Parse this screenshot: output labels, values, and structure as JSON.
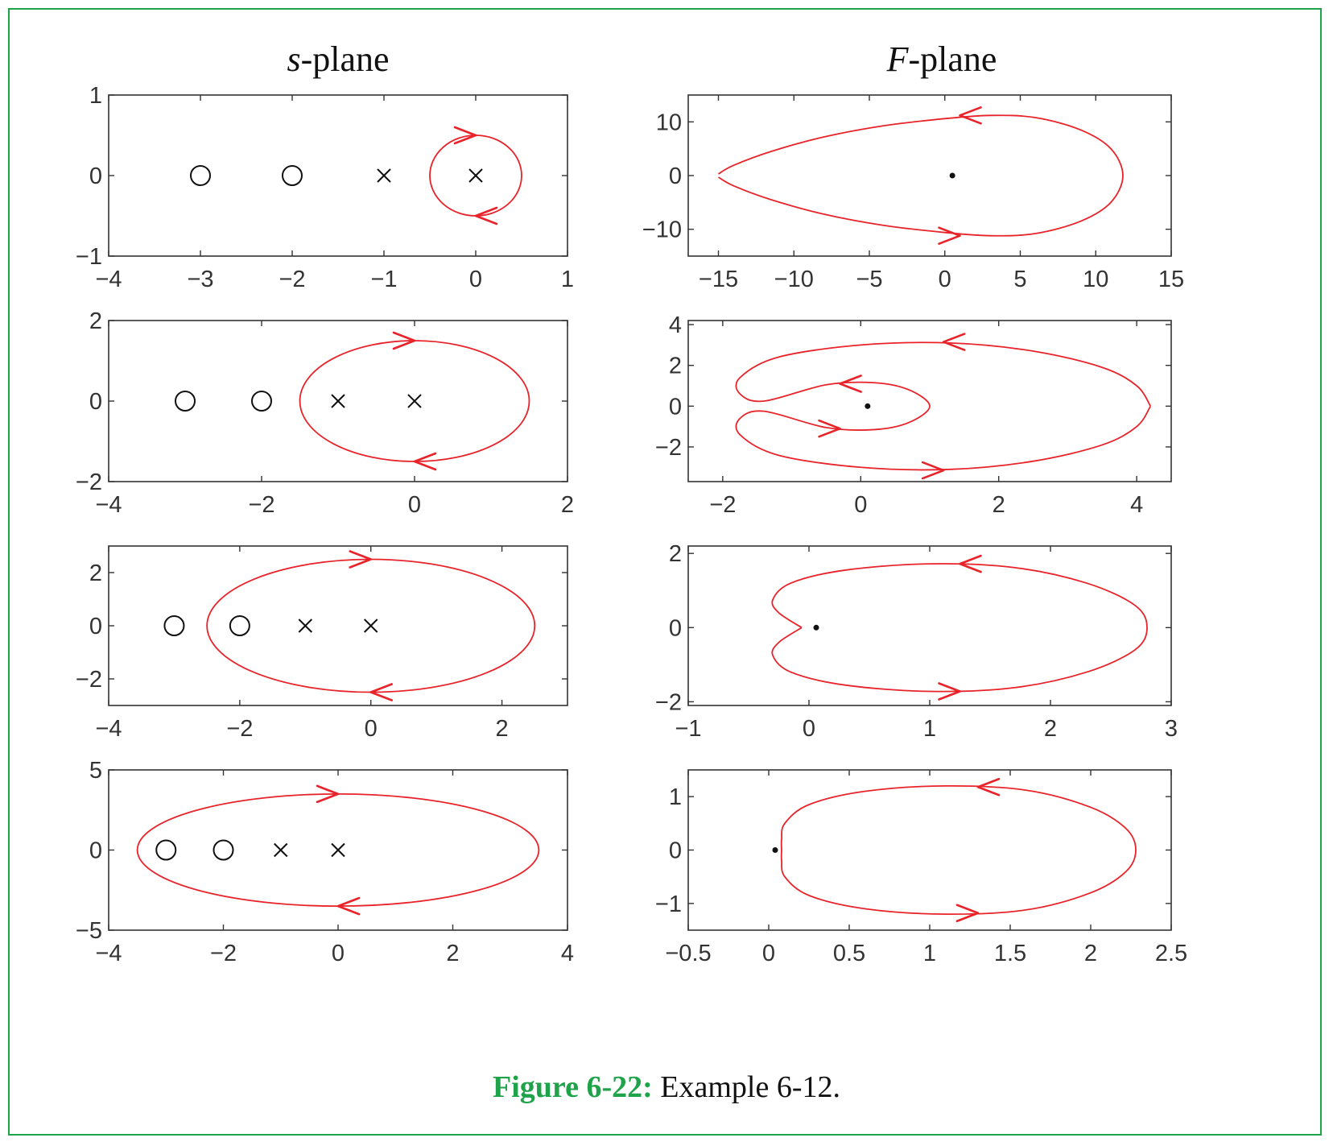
{
  "caption": {
    "label": "Figure 6-22:",
    "text": " Example 6-12."
  },
  "colors": {
    "contour": "#e8232a",
    "frame": "#1fa34a",
    "caption_label": "#1fa34a",
    "marks": "#111111"
  },
  "chart_data": [
    {
      "id": "s1",
      "column": "s-plane",
      "title_var": "s",
      "title_rest": "-plane",
      "type": "scatter",
      "xlim": [
        -4,
        1
      ],
      "ylim": [
        -1,
        1
      ],
      "xticks": [
        -4,
        -3,
        -2,
        -1,
        0,
        1
      ],
      "xtick_labels": [
        "−4",
        "−3",
        "−2",
        "−1",
        "0",
        "1"
      ],
      "yticks": [
        -1,
        0,
        1
      ],
      "ytick_labels": [
        "−1",
        "0",
        "1"
      ],
      "zeros": [
        [
          -3,
          0
        ],
        [
          -2,
          0
        ]
      ],
      "poles": [
        [
          -1,
          0
        ],
        [
          0,
          0
        ]
      ],
      "contour": {
        "shape": "circle",
        "center": [
          0,
          0
        ],
        "radius": 0.5,
        "direction": "clockwise"
      },
      "arrows": [
        {
          "at": [
            0,
            0.5
          ],
          "dir": "right"
        },
        {
          "at": [
            0,
            -0.5
          ],
          "dir": "left"
        }
      ]
    },
    {
      "id": "F1",
      "column": "F-plane",
      "title_var": "F",
      "title_rest": "-plane",
      "type": "line",
      "xlim": [
        -17,
        15
      ],
      "ylim": [
        -15,
        15
      ],
      "xticks": [
        -15,
        -10,
        -5,
        0,
        5,
        10,
        15
      ],
      "xtick_labels": [
        "−15",
        "−10",
        "−5",
        "0",
        "5",
        "10",
        "15"
      ],
      "yticks": [
        -10,
        0,
        10
      ],
      "ytick_labels": [
        "−10",
        "0",
        "10"
      ],
      "origin": [
        0.5,
        0
      ],
      "contour_points": [
        [
          -15.0,
          0.3
        ],
        [
          -14.0,
          1.9
        ],
        [
          -11.5,
          4.5
        ],
        [
          -8.0,
          7.2
        ],
        [
          -4.0,
          9.3
        ],
        [
          0.0,
          10.6
        ],
        [
          3.0,
          11.2
        ],
        [
          6.0,
          10.8
        ],
        [
          9.0,
          8.5
        ],
        [
          11.0,
          5.0
        ],
        [
          11.8,
          0.0
        ],
        [
          11.0,
          -5.0
        ],
        [
          9.0,
          -8.5
        ],
        [
          6.0,
          -10.8
        ],
        [
          3.0,
          -11.2
        ],
        [
          0.0,
          -10.6
        ],
        [
          -4.0,
          -9.3
        ],
        [
          -8.0,
          -7.2
        ],
        [
          -11.5,
          -4.5
        ],
        [
          -14.0,
          -1.9
        ],
        [
          -15.0,
          -0.3
        ]
      ],
      "arrows": [
        {
          "at": [
            1.0,
            11.2
          ],
          "dir": "left"
        },
        {
          "at": [
            1.0,
            -11.2
          ],
          "dir": "right"
        }
      ]
    },
    {
      "id": "s2",
      "column": "s-plane",
      "type": "scatter",
      "xlim": [
        -4,
        2
      ],
      "ylim": [
        -2,
        2
      ],
      "xticks": [
        -4,
        -2,
        0,
        2
      ],
      "xtick_labels": [
        "−4",
        "−2",
        "0",
        "2"
      ],
      "yticks": [
        -2,
        0,
        2
      ],
      "ytick_labels": [
        "−2",
        "0",
        "2"
      ],
      "zeros": [
        [
          -3,
          0
        ],
        [
          -2,
          0
        ]
      ],
      "poles": [
        [
          -1,
          0
        ],
        [
          0,
          0
        ]
      ],
      "contour": {
        "shape": "circle",
        "center": [
          0,
          0
        ],
        "radius": 1.5,
        "direction": "clockwise"
      },
      "arrows": [
        {
          "at": [
            0,
            1.5
          ],
          "dir": "right"
        },
        {
          "at": [
            0,
            -1.5
          ],
          "dir": "left"
        }
      ]
    },
    {
      "id": "F2",
      "column": "F-plane",
      "type": "line",
      "xlim": [
        -2.5,
        4.5
      ],
      "ylim": [
        -3.7,
        4.2
      ],
      "xticks": [
        -2,
        0,
        2,
        4
      ],
      "xtick_labels": [
        "−2",
        "0",
        "2",
        "4"
      ],
      "yticks": [
        -2,
        0,
        2,
        4
      ],
      "ytick_labels": [
        "−2",
        "0",
        "2",
        "4"
      ],
      "origin": [
        0.1,
        0
      ],
      "contour_points": [
        [
          4.2,
          0.0
        ],
        [
          4.0,
          1.0
        ],
        [
          3.5,
          1.9
        ],
        [
          2.5,
          2.7
        ],
        [
          1.3,
          3.1
        ],
        [
          0.0,
          3.0
        ],
        [
          -1.2,
          2.4
        ],
        [
          -1.75,
          1.4
        ],
        [
          -1.75,
          0.6
        ],
        [
          -1.4,
          0.25
        ],
        [
          -0.5,
          1.05
        ],
        [
          0.2,
          1.15
        ],
        [
          0.7,
          0.8
        ],
        [
          1.0,
          0.0
        ],
        [
          0.7,
          -0.8
        ],
        [
          0.2,
          -1.15
        ],
        [
          -0.5,
          -1.05
        ],
        [
          -1.4,
          -0.25
        ],
        [
          -1.75,
          -0.6
        ],
        [
          -1.75,
          -1.4
        ],
        [
          -1.2,
          -2.4
        ],
        [
          0.0,
          -3.0
        ],
        [
          1.3,
          -3.1
        ],
        [
          2.5,
          -2.7
        ],
        [
          3.5,
          -1.9
        ],
        [
          4.0,
          -1.0
        ],
        [
          4.2,
          0.0
        ]
      ],
      "arrows": [
        {
          "at": [
            1.2,
            3.15
          ],
          "dir": "left"
        },
        {
          "at": [
            1.2,
            -3.15
          ],
          "dir": "right"
        },
        {
          "at": [
            -0.3,
            1.1
          ],
          "dir": "left"
        },
        {
          "at": [
            -0.3,
            -1.1
          ],
          "dir": "right"
        }
      ]
    },
    {
      "id": "s3",
      "column": "s-plane",
      "type": "scatter",
      "xlim": [
        -4,
        3
      ],
      "ylim": [
        -3,
        3
      ],
      "xticks": [
        -4,
        -2,
        0,
        2
      ],
      "xtick_labels": [
        "−4",
        "−2",
        "0",
        "2"
      ],
      "yticks": [
        -2,
        0,
        2
      ],
      "ytick_labels": [
        "−2",
        "0",
        "2"
      ],
      "zeros": [
        [
          -3,
          0
        ],
        [
          -2,
          0
        ]
      ],
      "poles": [
        [
          -1,
          0
        ],
        [
          0,
          0
        ]
      ],
      "contour": {
        "shape": "circle",
        "center": [
          0,
          0
        ],
        "radius": 2.5,
        "direction": "clockwise"
      },
      "arrows": [
        {
          "at": [
            0,
            2.5
          ],
          "dir": "right"
        },
        {
          "at": [
            0,
            -2.5
          ],
          "dir": "left"
        }
      ]
    },
    {
      "id": "F3",
      "column": "F-plane",
      "type": "line",
      "xlim": [
        -1,
        3
      ],
      "ylim": [
        -2.1,
        2.2
      ],
      "xticks": [
        -1,
        0,
        1,
        2,
        3
      ],
      "xtick_labels": [
        "−1",
        "0",
        "1",
        "2",
        "3"
      ],
      "yticks": [
        -2,
        0,
        2
      ],
      "ytick_labels": [
        "−2",
        "0",
        "2"
      ],
      "origin": [
        0.06,
        0
      ],
      "contour_points": [
        [
          -0.06,
          0.0
        ],
        [
          -0.25,
          0.4
        ],
        [
          -0.3,
          0.75
        ],
        [
          -0.15,
          1.2
        ],
        [
          0.3,
          1.55
        ],
        [
          1.0,
          1.72
        ],
        [
          1.7,
          1.62
        ],
        [
          2.3,
          1.2
        ],
        [
          2.7,
          0.6
        ],
        [
          2.8,
          0.0
        ],
        [
          2.7,
          -0.6
        ],
        [
          2.3,
          -1.2
        ],
        [
          1.7,
          -1.62
        ],
        [
          1.0,
          -1.72
        ],
        [
          0.3,
          -1.55
        ],
        [
          -0.15,
          -1.2
        ],
        [
          -0.3,
          -0.75
        ],
        [
          -0.25,
          -0.4
        ],
        [
          -0.06,
          0.0
        ]
      ],
      "arrows": [
        {
          "at": [
            1.25,
            1.72
          ],
          "dir": "left"
        },
        {
          "at": [
            1.25,
            -1.72
          ],
          "dir": "right"
        }
      ]
    },
    {
      "id": "s4",
      "column": "s-plane",
      "type": "scatter",
      "xlim": [
        -4,
        4
      ],
      "ylim": [
        -5,
        5
      ],
      "xticks": [
        -4,
        -2,
        0,
        2,
        4
      ],
      "xtick_labels": [
        "−4",
        "−2",
        "0",
        "2",
        "4"
      ],
      "yticks": [
        -5,
        0,
        5
      ],
      "ytick_labels": [
        "−5",
        "0",
        "5"
      ],
      "zeros": [
        [
          -3,
          0
        ],
        [
          -2,
          0
        ]
      ],
      "poles": [
        [
          -1,
          0
        ],
        [
          0,
          0
        ]
      ],
      "contour": {
        "shape": "circle",
        "center": [
          0,
          0
        ],
        "radius": 3.5,
        "direction": "clockwise"
      },
      "arrows": [
        {
          "at": [
            0,
            3.5
          ],
          "dir": "right"
        },
        {
          "at": [
            0,
            -3.5
          ],
          "dir": "left"
        }
      ]
    },
    {
      "id": "F4",
      "column": "F-plane",
      "type": "line",
      "xlim": [
        -0.5,
        2.5
      ],
      "ylim": [
        -1.5,
        1.5
      ],
      "xticks": [
        -0.5,
        0,
        0.5,
        1,
        1.5,
        2,
        2.5
      ],
      "xtick_labels": [
        "−0.5",
        "0",
        "0.5",
        "1",
        "1.5",
        "2",
        "2.5"
      ],
      "yticks": [
        -1,
        0,
        1
      ],
      "ytick_labels": [
        "−1",
        "0",
        "1"
      ],
      "origin": [
        0.04,
        0
      ],
      "contour_points": [
        [
          0.08,
          0.0
        ],
        [
          0.08,
          0.2
        ],
        [
          0.1,
          0.5
        ],
        [
          0.25,
          0.85
        ],
        [
          0.6,
          1.1
        ],
        [
          1.1,
          1.2
        ],
        [
          1.6,
          1.12
        ],
        [
          2.0,
          0.8
        ],
        [
          2.22,
          0.4
        ],
        [
          2.28,
          0.0
        ],
        [
          2.22,
          -0.4
        ],
        [
          2.0,
          -0.8
        ],
        [
          1.6,
          -1.12
        ],
        [
          1.1,
          -1.2
        ],
        [
          0.6,
          -1.1
        ],
        [
          0.25,
          -0.85
        ],
        [
          0.1,
          -0.5
        ],
        [
          0.08,
          -0.2
        ],
        [
          0.08,
          0.0
        ]
      ],
      "arrows": [
        {
          "at": [
            1.3,
            1.18
          ],
          "dir": "left"
        },
        {
          "at": [
            1.3,
            -1.18
          ],
          "dir": "right"
        }
      ]
    }
  ]
}
